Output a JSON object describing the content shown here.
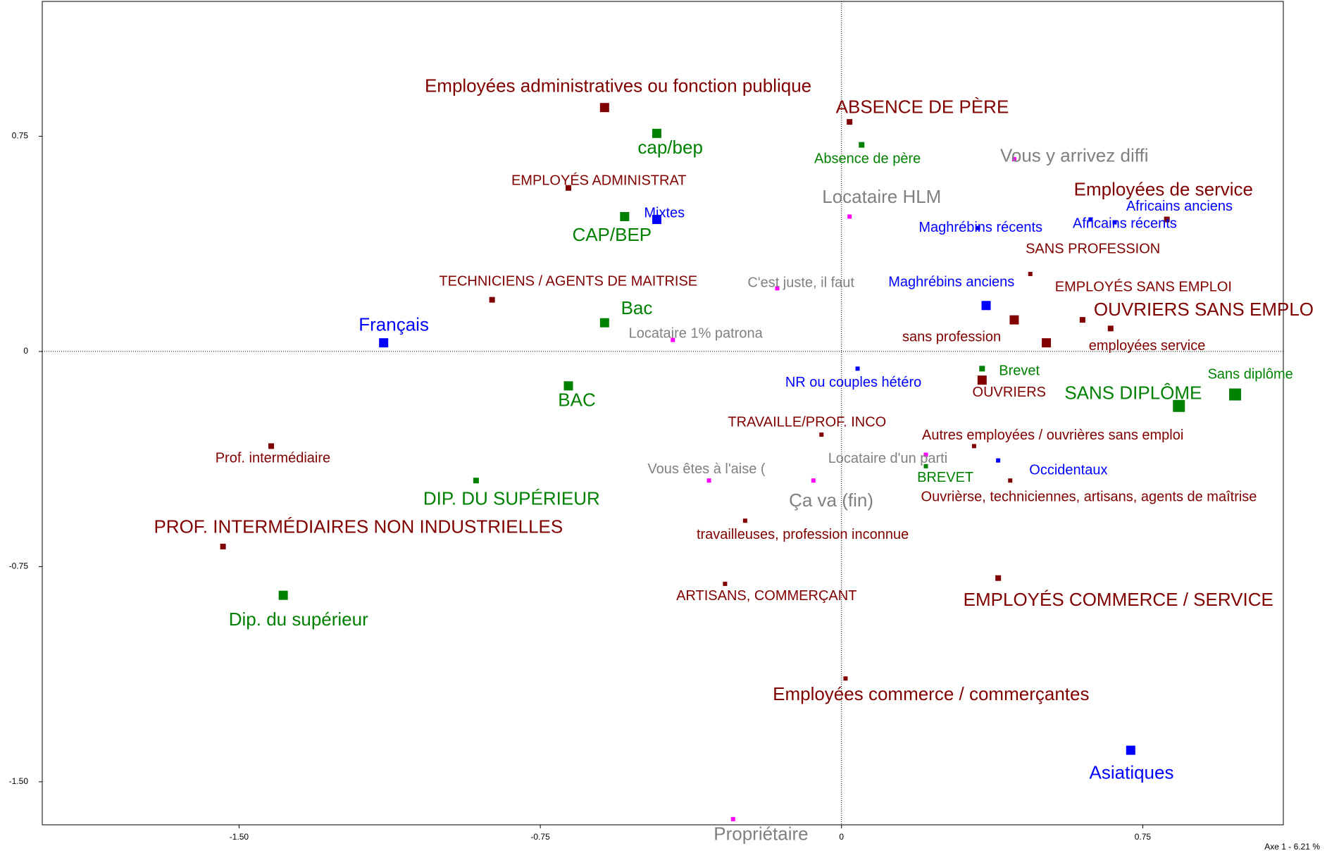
{
  "chart_data": {
    "type": "scatter",
    "x_label": "Axe 1  -  6.21 %",
    "xlim": [
      -1.99,
      1.1
    ],
    "ylim": [
      -1.65,
      1.22
    ],
    "xticks": [
      {
        "value": -1.5,
        "label": "-1.50"
      },
      {
        "value": -0.75,
        "label": "-0.75"
      },
      0,
      {
        "value": 0.75,
        "label": "0.75"
      }
    ],
    "yticks": [
      {
        "value": 0.75,
        "label": "0.75"
      },
      0,
      {
        "value": -0.75,
        "label": "-0.75"
      },
      {
        "value": -1.5,
        "label": "-1.50"
      }
    ],
    "points": [
      {
        "label": "Employées administratives ou fonction publique",
        "x": -0.59,
        "y": 0.85,
        "color": "#800000"
      },
      {
        "label": "ABSENCE DE PÈRE",
        "x": 0.02,
        "y": 0.8,
        "color": "#800000"
      },
      {
        "label": "cap/bep",
        "x": -0.46,
        "y": 0.76,
        "color": "#008000"
      },
      {
        "label": "Absence de père",
        "x": 0.05,
        "y": 0.72,
        "color": "#008000"
      },
      {
        "label": "Vous y arrivez diffi",
        "x": 0.43,
        "y": 0.67,
        "color": "#808080",
        "marker_color": "#ff00ff"
      },
      {
        "label": "EMPLOYÉS ADMINISTRAT",
        "x": -0.68,
        "y": 0.57,
        "color": "#800000"
      },
      {
        "label": "Employées de service",
        "x": 0.81,
        "y": 0.46,
        "color": "#800000"
      },
      {
        "label": "Africains anciens",
        "x": 0.62,
        "y": 0.46,
        "color": "#0000ff"
      },
      {
        "label": "Africains récents",
        "x": 0.68,
        "y": 0.45,
        "color": "#0000ff"
      },
      {
        "label": "Locataire HLM",
        "x": 0.02,
        "y": 0.47,
        "color": "#808080",
        "marker_color": "#ff00ff"
      },
      {
        "label": "Mixtes",
        "x": -0.46,
        "y": 0.46,
        "color": "#0000ff"
      },
      {
        "label": "CAP/BEP",
        "x": -0.54,
        "y": 0.47,
        "color": "#008000"
      },
      {
        "label": "Maghrébins récents",
        "x": 0.34,
        "y": 0.43,
        "color": "#0000ff"
      },
      {
        "label": "SANS PROFESSION",
        "x": 0.47,
        "y": 0.27,
        "color": "#800000"
      },
      {
        "label": "TECHNICIENS / AGENTS DE MAITRISE",
        "x": -0.87,
        "y": 0.18,
        "color": "#800000"
      },
      {
        "label": "C'est juste, il faut",
        "x": -0.16,
        "y": 0.22,
        "color": "#808080",
        "marker_color": "#ff00ff"
      },
      {
        "label": "Maghrébins anciens",
        "x": 0.36,
        "y": 0.16,
        "color": "#0000ff"
      },
      {
        "label": "EMPLOYÉS SANS EMPLOI",
        "x": 0.6,
        "y": 0.11,
        "color": "#800000"
      },
      {
        "label": "OUVRIERS SANS EMPLO",
        "x": 0.67,
        "y": 0.08,
        "color": "#800000"
      },
      {
        "label": "sans profession",
        "x": 0.43,
        "y": 0.11,
        "color": "#800000"
      },
      {
        "label": "employées service",
        "x": 0.51,
        "y": 0.03,
        "color": "#800000"
      },
      {
        "label": "Bac",
        "x": -0.59,
        "y": 0.1,
        "color": "#008000"
      },
      {
        "label": "Français",
        "x": -1.14,
        "y": 0.03,
        "color": "#0000ff"
      },
      {
        "label": "Locataire 1% patrona",
        "x": -0.42,
        "y": 0.04,
        "color": "#808080",
        "marker_color": "#ff00ff"
      },
      {
        "label": "NR ou couples hétéro",
        "x": 0.04,
        "y": -0.06,
        "color": "#0000ff"
      },
      {
        "label": "Brevet",
        "x": 0.35,
        "y": -0.06,
        "color": "#008000"
      },
      {
        "label": "OUVRIERS",
        "x": 0.35,
        "y": -0.1,
        "color": "#800000"
      },
      {
        "label": "SANS DIPLÔME",
        "x": 0.84,
        "y": -0.19,
        "color": "#008000"
      },
      {
        "label": "Sans diplôme",
        "x": 0.98,
        "y": -0.15,
        "color": "#008000"
      },
      {
        "label": "BAC",
        "x": -0.68,
        "y": -0.12,
        "color": "#008000"
      },
      {
        "label": "TRAVAILLE/PROF. INCO",
        "x": -0.05,
        "y": -0.29,
        "color": "#800000"
      },
      {
        "label": "Autres employées / ouvrières sans emploi",
        "x": 0.33,
        "y": -0.33,
        "color": "#800000"
      },
      {
        "label": "Prof.  intermédiaire",
        "x": -1.42,
        "y": -0.33,
        "color": "#800000"
      },
      {
        "label": "Locataire d'un parti",
        "x": 0.21,
        "y": -0.36,
        "color": "#808080",
        "marker_color": "#ff00ff"
      },
      {
        "label": "Occidentaux",
        "x": 0.39,
        "y": -0.38,
        "color": "#0000ff"
      },
      {
        "label": "BREVET",
        "x": 0.21,
        "y": -0.4,
        "color": "#008000"
      },
      {
        "label": "Vous êtes à l'aise (",
        "x": -0.33,
        "y": -0.45,
        "color": "#808080",
        "marker_color": "#ff00ff"
      },
      {
        "label": "Ça va (fin)",
        "x": -0.07,
        "y": -0.45,
        "color": "#808080",
        "marker_color": "#ff00ff"
      },
      {
        "label": "DIP. DU SUPÉRIEUR",
        "x": -0.91,
        "y": -0.45,
        "color": "#008000"
      },
      {
        "label": "Ouvrièrse, techniciennes, artisans, agents de maîtrise",
        "x": 0.42,
        "y": -0.45,
        "color": "#800000"
      },
      {
        "label": "travailleuses, profession inconnue",
        "x": -0.24,
        "y": -0.59,
        "color": "#800000"
      },
      {
        "label": "PROF. INTERMÉDIAIRES NON INDUSTRIELLES",
        "x": -1.54,
        "y": -0.68,
        "color": "#800000"
      },
      {
        "label": "EMPLOYÉS COMMERCE / SERVICE",
        "x": 0.39,
        "y": -0.79,
        "color": "#800000"
      },
      {
        "label": "ARTISANS, COMMERÇANT",
        "x": -0.29,
        "y": -0.81,
        "color": "#800000"
      },
      {
        "label": "Dip. du supérieur",
        "x": -1.39,
        "y": -0.85,
        "color": "#008000"
      },
      {
        "label": "Employées commerce / commerçantes",
        "x": 0.01,
        "y": -1.14,
        "color": "#800000"
      },
      {
        "label": "Asiatiques",
        "x": 0.72,
        "y": -1.39,
        "color": "#0000ff"
      },
      {
        "label": "Propriétaire",
        "x": -0.27,
        "y": -1.63,
        "color": "#808080",
        "marker_color": "#ff00ff"
      }
    ]
  }
}
